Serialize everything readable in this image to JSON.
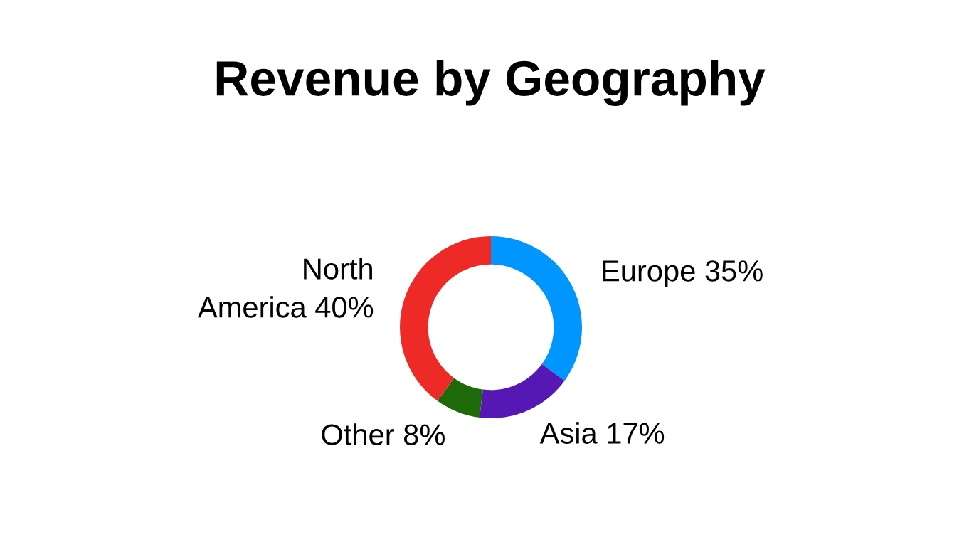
{
  "chart_data": {
    "type": "donut",
    "title": "Revenue by Geography",
    "categories": [
      "Europe",
      "Asia",
      "Other",
      "North America"
    ],
    "values": [
      35,
      17,
      8,
      40
    ],
    "value_labels": [
      "35%",
      "17%",
      "8%",
      "40%"
    ],
    "colors": [
      "#0096ff",
      "#5518b4",
      "#1f6a08",
      "#ee2a27"
    ]
  }
}
